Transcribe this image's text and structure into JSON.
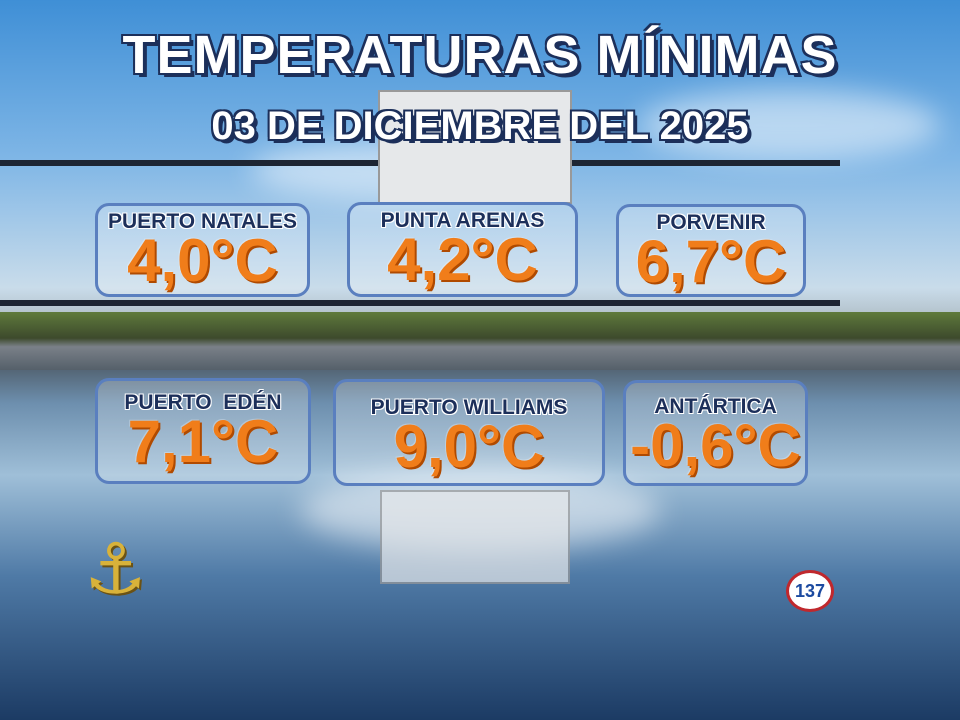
{
  "header": {
    "title": "TEMPERATURAS MÍNIMAS",
    "date": "03 DE DICIEMBRE DEL 2025"
  },
  "stations": [
    {
      "name": "PUERTO NATALES",
      "temperature": "4,0°C"
    },
    {
      "name": "PUNTA ARENAS",
      "temperature": "4,2°C"
    },
    {
      "name": "PORVENIR",
      "temperature": "6,7°C"
    },
    {
      "name": "PUERTO  EDÉN",
      "temperature": "7,1°C"
    },
    {
      "name": "PUERTO WILLIAMS",
      "temperature": "9,0°C"
    },
    {
      "name": "ANTÁRTICA",
      "temperature": "-0,6°C"
    }
  ],
  "logo": {
    "text": "137"
  }
}
